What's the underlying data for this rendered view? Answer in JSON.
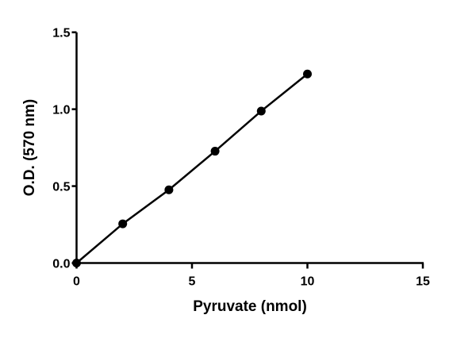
{
  "chart_data": {
    "type": "line",
    "title": "",
    "xlabel": "Pyruvate (nmol)",
    "ylabel": "O.D. (570 nm)",
    "xlim": [
      0,
      15
    ],
    "ylim": [
      0,
      1.5
    ],
    "xticks": [
      "0",
      "5",
      "10",
      "15"
    ],
    "yticks": [
      "0.0",
      "0.5",
      "1.0",
      "1.5"
    ],
    "grid": false,
    "markers": "filled-circle",
    "line_color": "#000000",
    "series": [
      {
        "x": [
          0,
          2,
          4,
          6,
          8,
          10
        ],
        "y": [
          0.0,
          0.255,
          0.476,
          0.727,
          0.988,
          1.229
        ]
      }
    ]
  }
}
